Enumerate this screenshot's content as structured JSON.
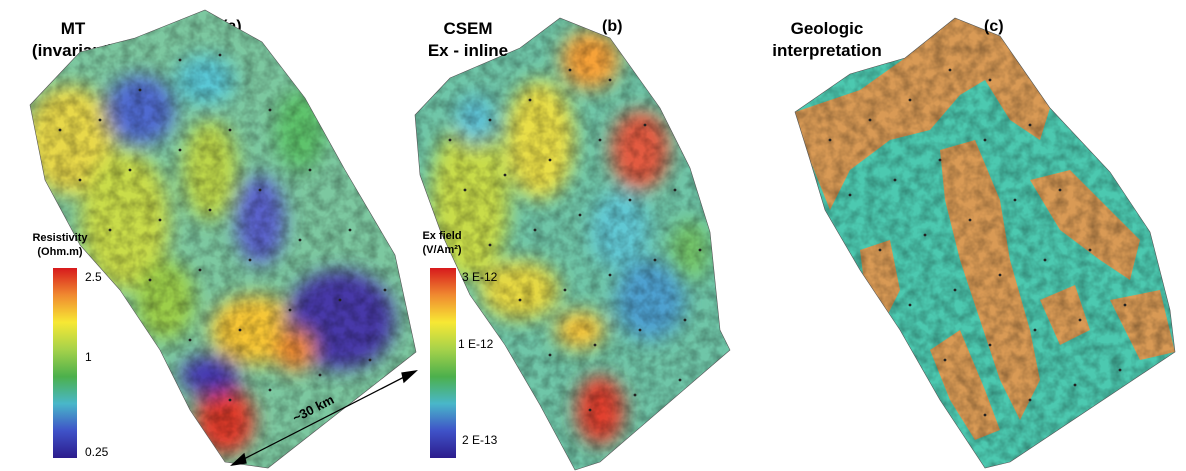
{
  "panels": [
    {
      "letter": "(a)",
      "title_line1": "MT",
      "title_line2": "(invariant)",
      "colorbar": {
        "title_line1": "Resistivity",
        "title_line2": "(Ohm.m)",
        "ticks": [
          "2.5",
          "1",
          "0.25"
        ],
        "colors": [
          "#d7191c",
          "#f08a30",
          "#f7e834",
          "#a6d24a",
          "#4cb04c",
          "#49b7c9",
          "#3f52c8",
          "#2c1c8c"
        ]
      },
      "scale_label": "~30 km"
    },
    {
      "letter": "(b)",
      "title_line1": "CSEM",
      "title_line2": "Ex - inline",
      "colorbar": {
        "title_line1": "Ex field",
        "title_line2": "(V/Am²)",
        "ticks": [
          "3 E-12",
          "1 E-12",
          "2 E-13"
        ],
        "colors": [
          "#d7191c",
          "#f08a30",
          "#f7e834",
          "#a6d24a",
          "#4cb04c",
          "#49b7c9",
          "#3f52c8",
          "#2c1c8c"
        ]
      }
    },
    {
      "letter": "(c)",
      "title_line1": "Geologic",
      "title_line2": "interpretation",
      "colors": {
        "unit_a": "#d99a55",
        "unit_b": "#4cc9b0"
      }
    }
  ]
}
